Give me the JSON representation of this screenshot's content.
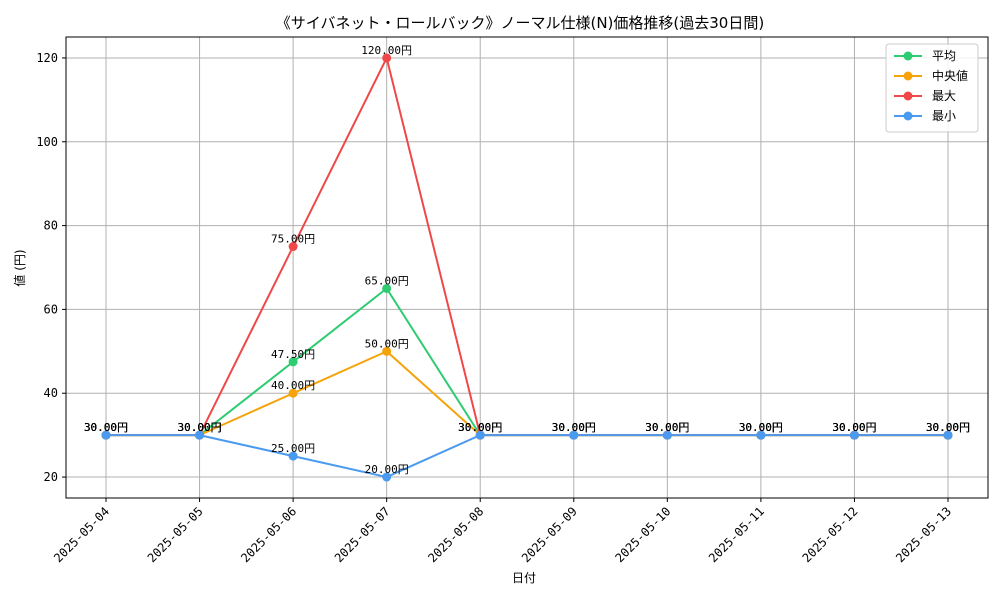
{
  "chart_data": {
    "type": "line",
    "title": "《サイバネット・ロールバック》ノーマル仕様(N)価格推移(過去30日間)",
    "xlabel": "日付",
    "ylabel": "値 (円)",
    "categories": [
      "2025-05-04",
      "2025-05-05",
      "2025-05-06",
      "2025-05-07",
      "2025-05-08",
      "2025-05-09",
      "2025-05-10",
      "2025-05-11",
      "2025-05-12",
      "2025-05-13"
    ],
    "ylim": [
      15,
      125
    ],
    "yticks": [
      20,
      40,
      60,
      80,
      100,
      120
    ],
    "grid": true,
    "legend_position": "top-right",
    "value_suffix": "円",
    "series": [
      {
        "name": "平均",
        "color": "#2ecc71",
        "values": [
          30,
          30,
          47.5,
          65,
          30,
          30,
          30,
          30,
          30,
          30
        ]
      },
      {
        "name": "中央値",
        "color": "#f5a30a",
        "values": [
          30,
          30,
          40,
          50,
          30,
          30,
          30,
          30,
          30,
          30
        ]
      },
      {
        "name": "最大",
        "color": "#f04848",
        "values": [
          30,
          30,
          75,
          120,
          30,
          30,
          30,
          30,
          30,
          30
        ]
      },
      {
        "name": "最小",
        "color": "#4a9af0",
        "values": [
          30,
          30,
          25,
          20,
          30,
          30,
          30,
          30,
          30,
          30
        ]
      }
    ]
  }
}
